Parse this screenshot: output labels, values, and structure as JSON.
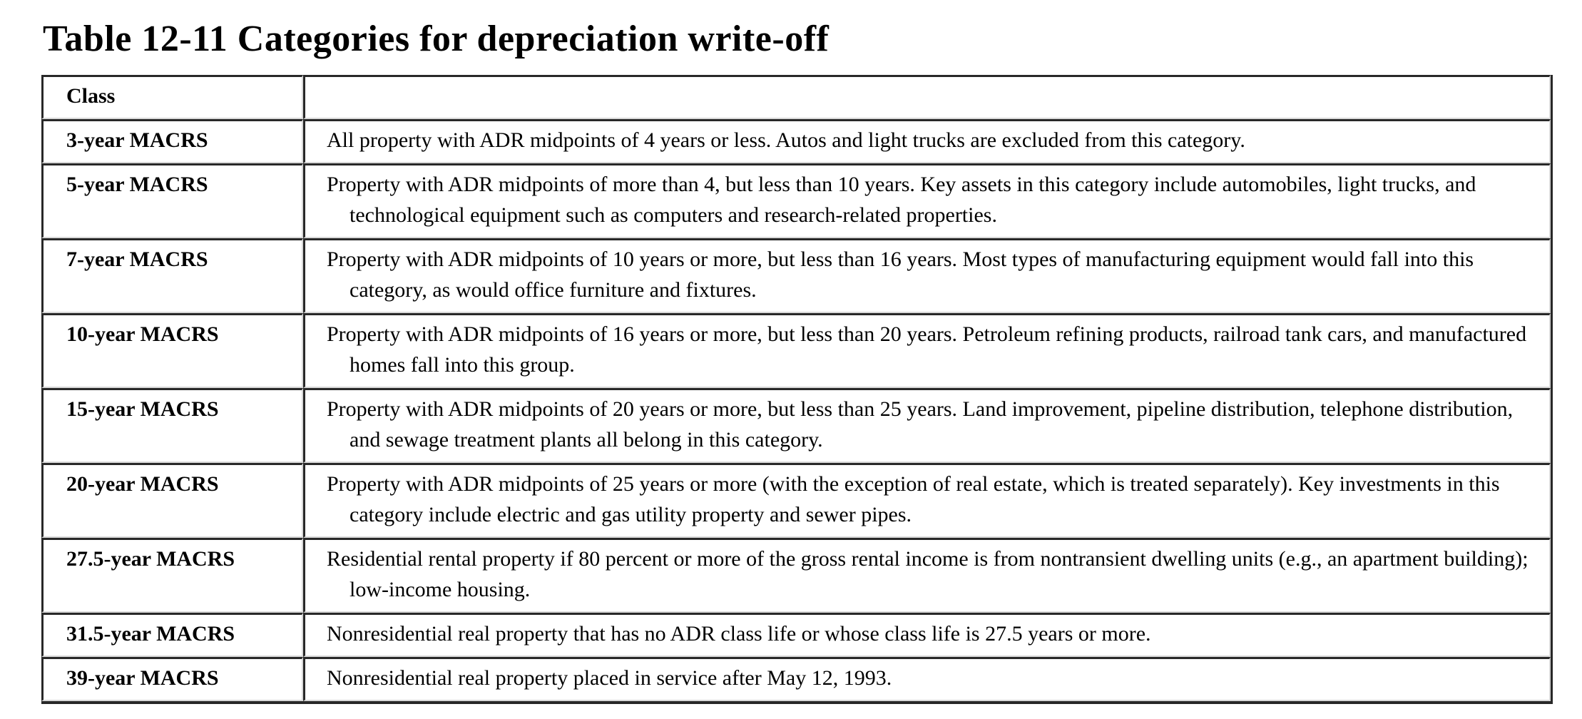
{
  "page": {
    "title": "Table 12-11 Categories for depreciation write-off"
  },
  "table": {
    "columns": [
      {
        "header": "Class"
      },
      {
        "header": ""
      }
    ],
    "rows": [
      {
        "class": "3-year MACRS",
        "description": "All property with ADR midpoints of 4 years or less. Autos and light trucks are excluded from this category."
      },
      {
        "class": "5-year MACRS",
        "description": "Property with ADR midpoints of more than 4, but less than 10 years. Key assets in this category include automobiles, light trucks, and technological equipment such as computers and research-related properties."
      },
      {
        "class": "7-year MACRS",
        "description": "Property with ADR midpoints of 10 years or more, but less than 16 years. Most types of manufacturing equipment would fall into this category, as would office furniture and fixtures."
      },
      {
        "class": "10-year MACRS",
        "description": "Property with ADR midpoints of 16 years or more, but less than 20 years. Petroleum refining products, railroad tank cars, and manufactured homes fall into this group."
      },
      {
        "class": "15-year MACRS",
        "description": "Property with ADR midpoints of 20 years or more, but less than 25 years. Land improvement, pipeline distribution, telephone distribution, and sewage treatment plants all belong in this category."
      },
      {
        "class": "20-year MACRS",
        "description": "Property with ADR midpoints of 25 years or more (with the exception of real estate, which is treated separately). Key investments in this category include electric and gas utility property and sewer pipes."
      },
      {
        "class": "27.5-year MACRS",
        "description": "Residential rental property if 80 percent or more of the gross rental income is from nontransient dwelling units (e.g., an apartment building); low-income housing."
      },
      {
        "class": "31.5-year MACRS",
        "description": "Nonresidential real property that has no ADR class life or whose class life is 27.5 years or more."
      },
      {
        "class": "39-year MACRS",
        "description": "Nonresidential real property placed in service after May 12, 1993."
      }
    ]
  },
  "colors": {
    "text": "#000000",
    "background": "#ffffff",
    "border_dark": "#282828",
    "border_light": "#d8d8d8"
  }
}
